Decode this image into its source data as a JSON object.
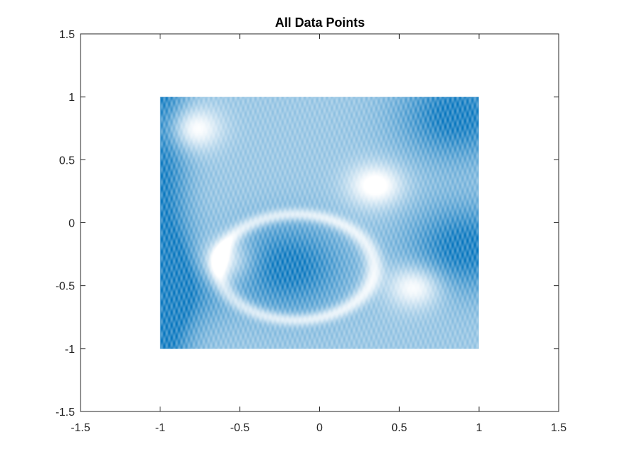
{
  "chart_data": {
    "type": "scatter",
    "title": "All Data Points",
    "xlabel": "",
    "ylabel": "",
    "xlim": [
      -1.5,
      1.5
    ],
    "ylim": [
      -1.5,
      1.5
    ],
    "xticks": [
      -1.5,
      -1,
      -0.5,
      0,
      0.5,
      1,
      1.5
    ],
    "yticks": [
      -1.5,
      -1,
      -0.5,
      0,
      0.5,
      1,
      1.5
    ],
    "xtick_labels": [
      "-1.5",
      "-1",
      "-0.5",
      "0",
      "0.5",
      "1",
      "1.5"
    ],
    "ytick_labels": [
      "-1.5",
      "-1",
      "-0.5",
      "0",
      "0.5",
      "1",
      "1.5"
    ],
    "grid": false,
    "legend": "none",
    "series": [
      {
        "marker_color": "#0072BD",
        "x_range": [
          -1,
          1
        ],
        "y_range": [
          -1,
          1
        ],
        "density_description_values": {
          "dense_regions": [
            {
              "x": -1.0,
              "y": -0.5
            },
            {
              "x": -0.2,
              "y": -0.35
            },
            {
              "x": 0.85,
              "y": 0.85
            },
            {
              "x": 0.9,
              "y": -0.2
            }
          ],
          "sparse_regions": [
            {
              "x": -0.6,
              "y": -0.3
            },
            {
              "x": 0.35,
              "y": 0.3
            },
            {
              "x": 0.6,
              "y": -0.5
            },
            {
              "x": -0.8,
              "y": 0.75
            }
          ]
        }
      }
    ]
  }
}
